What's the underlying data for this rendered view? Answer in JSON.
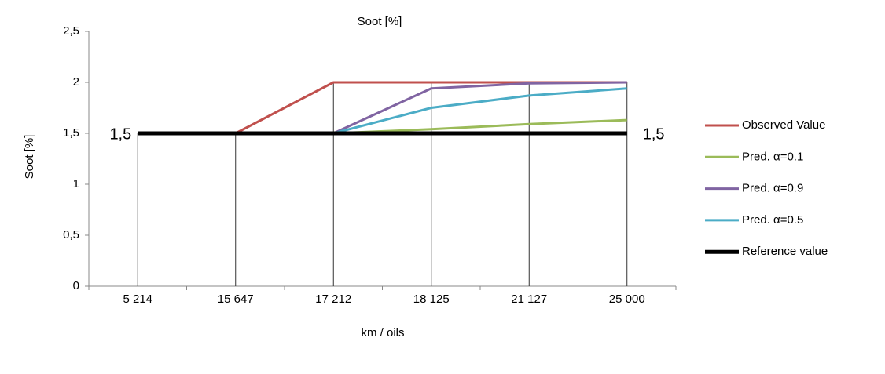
{
  "chart_data": {
    "type": "line",
    "title": "Soot [%]",
    "x_label": "km / oils",
    "y_label": "Soot [%]",
    "categories": [
      "5 214",
      "15 647",
      "17 212",
      "18 125",
      "21 127",
      "25 000"
    ],
    "series": [
      {
        "name": "Observed Value",
        "color": "#c0504d",
        "values": [
          null,
          1.5,
          2,
          2,
          2,
          2
        ]
      },
      {
        "name": "Pred.  α=0.1",
        "color": "#9bbb59",
        "values": [
          null,
          null,
          1.5,
          1.54,
          1.59,
          1.63
        ]
      },
      {
        "name": "Pred.  α=0.9",
        "color": "#8064a2",
        "values": [
          null,
          null,
          1.5,
          1.94,
          1.99,
          2
        ]
      },
      {
        "name": "Pred.  α=0.5",
        "color": "#4bacc6",
        "values": [
          null,
          null,
          1.5,
          1.75,
          1.87,
          1.94
        ]
      },
      {
        "name": "Reference value",
        "color": "#000000",
        "values": [
          1.5,
          1.5,
          1.5,
          1.5,
          1.5,
          1.5
        ],
        "value_labels": [
          "1,5",
          null,
          null,
          null,
          null,
          "1,5"
        ]
      }
    ],
    "ylim": [
      0,
      2.5
    ],
    "yticks": [
      0,
      {
        "value": 0.5,
        "label": "0,5"
      },
      1,
      {
        "value": 1.5,
        "label": "1,5"
      },
      2,
      {
        "value": 2.5,
        "label": "2,5"
      }
    ],
    "grid": false,
    "legend": "right"
  }
}
